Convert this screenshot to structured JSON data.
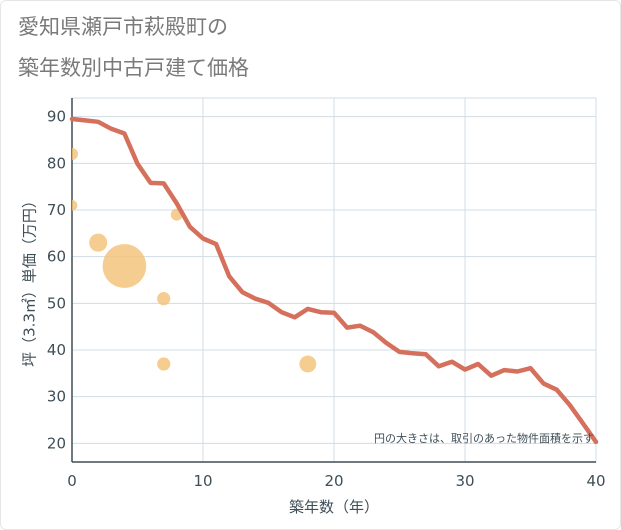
{
  "title_line1": "愛知県瀬戸市萩殿町の",
  "title_line2": "築年数別中古戸建て価格",
  "chart_data": {
    "type": "scatter+line",
    "xlabel": "築年数（年）",
    "ylabel": "坪（3.3㎡）単価（万円）",
    "xlim": [
      0,
      40
    ],
    "ylim": [
      16,
      94
    ],
    "x_ticks": [
      0,
      10,
      20,
      30,
      40
    ],
    "y_ticks": [
      20,
      30,
      40,
      50,
      60,
      70,
      80,
      90
    ],
    "grid": true,
    "note": "円の大きさは、取引のあった物件面積を示す",
    "colors": {
      "line": "#d4705c",
      "bubble": "#f4c074",
      "grid": "#d0dce6",
      "axis": "#3f4f57"
    },
    "line": {
      "x": [
        0,
        1,
        2,
        3,
        4,
        5,
        6,
        7,
        8,
        9,
        10,
        11,
        12,
        13,
        14,
        15,
        16,
        17,
        18,
        19,
        20,
        21,
        22,
        23,
        24,
        25,
        26,
        27,
        28,
        29,
        30,
        31,
        32,
        33,
        34,
        35,
        36,
        37,
        38,
        39,
        40
      ],
      "y": [
        89.5,
        89.2,
        88.9,
        87.4,
        86.4,
        79.9,
        75.8,
        75.7,
        71.4,
        66.4,
        63.9,
        62.7,
        55.8,
        52.4,
        51.0,
        50.1,
        48.1,
        47.0,
        48.8,
        48.1,
        48.0,
        44.8,
        45.2,
        43.8,
        41.5,
        39.6,
        39.3,
        39.1,
        36.5,
        37.5,
        35.8,
        37.0,
        34.5,
        35.7,
        35.4,
        36.1,
        32.8,
        31.5,
        28.2,
        24.3,
        20.3
      ]
    },
    "bubbles": [
      {
        "x": 0,
        "y": 82,
        "size": 1.0
      },
      {
        "x": 0,
        "y": 71,
        "size": 0.9
      },
      {
        "x": 2,
        "y": 63,
        "size": 1.5
      },
      {
        "x": 4,
        "y": 58,
        "size": 3.6
      },
      {
        "x": 7,
        "y": 51,
        "size": 1.1
      },
      {
        "x": 7,
        "y": 37,
        "size": 1.1
      },
      {
        "x": 8,
        "y": 69,
        "size": 1.0
      },
      {
        "x": 18,
        "y": 37,
        "size": 1.4
      }
    ]
  }
}
